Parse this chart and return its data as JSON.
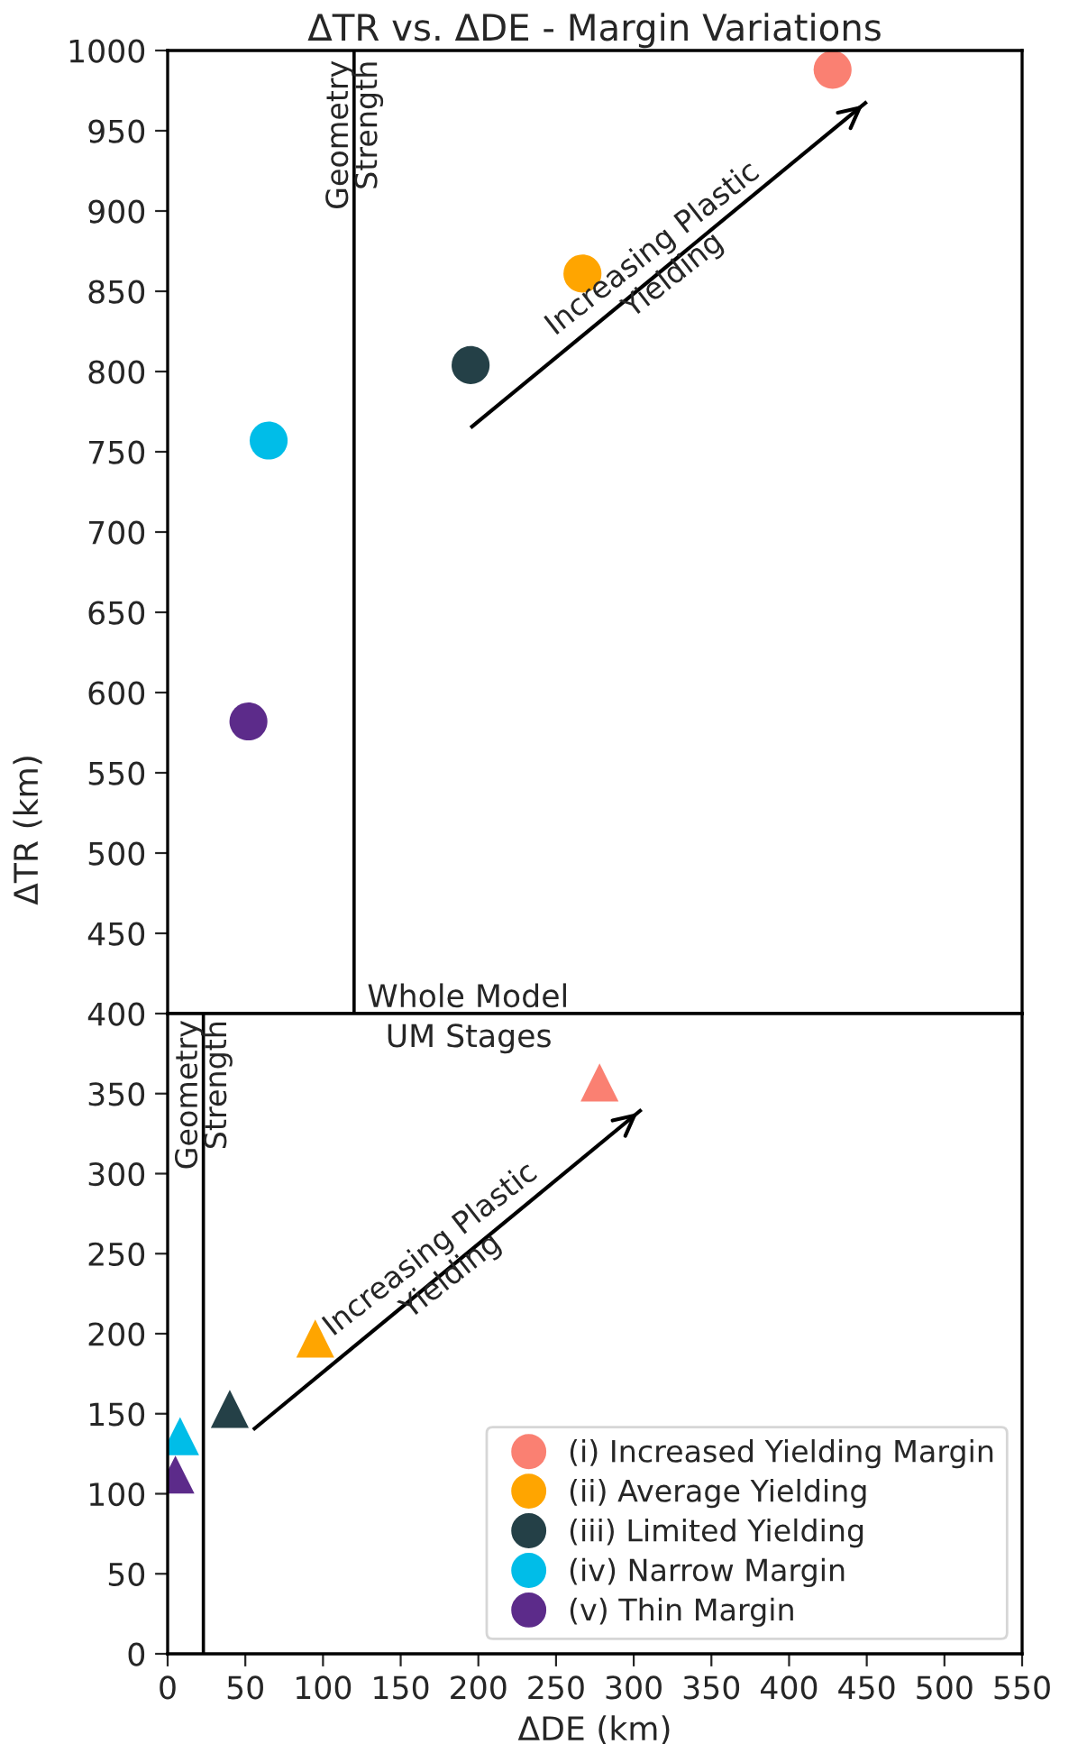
{
  "chart_data": [
    {
      "type": "scatter",
      "title": "ΔTR vs. ΔDE - Margin Variations",
      "ylabel": "ΔTR (km)",
      "xlim": [
        0,
        550
      ],
      "ylim": [
        400,
        1000
      ],
      "yticks": [
        450,
        500,
        550,
        600,
        650,
        700,
        750,
        800,
        850,
        900,
        950,
        1000
      ],
      "tick_labels": "y",
      "grid": false,
      "marker": "circle",
      "legend": "bottom right",
      "series": [
        {
          "name": "(i) Increased Yielding Margin",
          "color": "#fa8072",
          "x": [
            428
          ],
          "values": [
            988
          ]
        },
        {
          "name": "(ii) Average Yielding",
          "color": "#ffa500",
          "x": [
            267
          ],
          "values": [
            861
          ]
        },
        {
          "name": "(iii) Limited Yielding",
          "color": "#244047",
          "x": [
            195
          ],
          "values": [
            804
          ]
        },
        {
          "name": "(iv) Narrow Margin",
          "color": "#00bde8",
          "x": [
            65
          ],
          "values": [
            757
          ]
        },
        {
          "name": "(v) Thin Margin",
          "color": "#5c2b8a",
          "x": [
            52
          ],
          "values": [
            582
          ]
        },
        {
          "type": "line",
          "marker": "none",
          "color": "#000000",
          "x": [
            195,
            450
          ],
          "values": [
            765,
            968
          ]
        }
      ],
      "ref_lines": [
        {
          "axis": "x",
          "value": 120,
          "label": "Geometry"
        }
      ],
      "annotations": [
        {
          "text": "Strength",
          "x": 120,
          "y": 1000
        },
        "Increasing Plastic\nYielding",
        {
          "text": "Whole Model",
          "x": 122,
          "y": 400
        }
      ]
    },
    {
      "type": "scatter",
      "xlabel": "ΔDE (km)",
      "xlim": [
        0,
        550
      ],
      "ylim": [
        0,
        400
      ],
      "xticks": [
        0,
        50,
        100,
        150,
        200,
        250,
        300,
        350,
        400,
        450,
        500,
        550
      ],
      "yticks": [
        0,
        50,
        100,
        150,
        200,
        250,
        300,
        350,
        400
      ],
      "grid": false,
      "marker": "triangle",
      "series": [
        {
          "color": "#fa8072",
          "x": [
            278
          ],
          "values": [
            357
          ]
        },
        {
          "color": "#ffa500",
          "x": [
            95
          ],
          "values": [
            197
          ]
        },
        {
          "color": "#244047",
          "x": [
            40
          ],
          "values": [
            153
          ]
        },
        {
          "color": "#00bde8",
          "x": [
            8
          ],
          "values": [
            136
          ]
        },
        {
          "color": "#5c2b8a",
          "x": [
            5
          ],
          "values": [
            112
          ]
        },
        {
          "type": "line",
          "marker": "none",
          "color": "#000000",
          "x": [
            55,
            305
          ],
          "values": [
            140,
            340
          ]
        }
      ],
      "ref_lines": [
        {
          "axis": "x",
          "value": 23,
          "label": "Geometry"
        }
      ],
      "annotations": [
        {
          "text": "Strength",
          "x": 23,
          "y": 400
        },
        "Increasing Plastic\nYielding",
        "UM Stages"
      ]
    }
  ]
}
